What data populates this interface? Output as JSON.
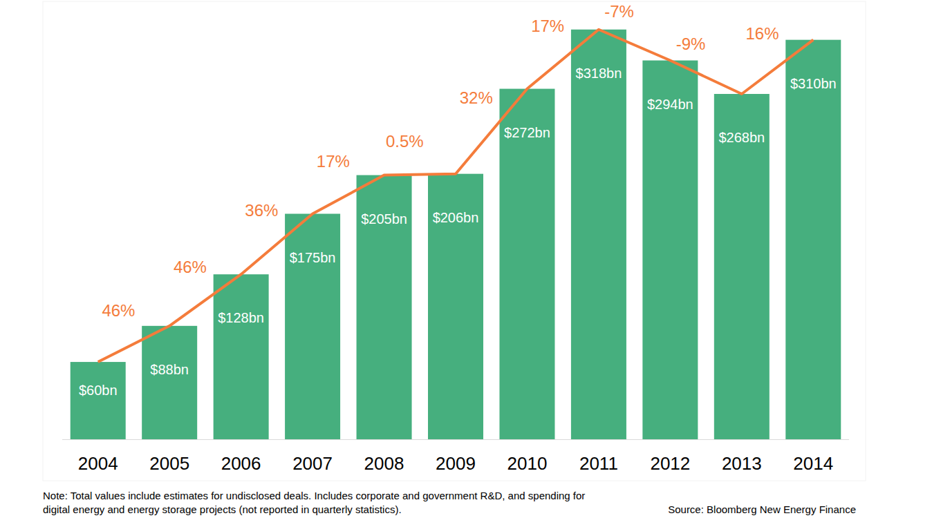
{
  "chart_data": {
    "type": "bar",
    "categories": [
      "2004",
      "2005",
      "2006",
      "2007",
      "2008",
      "2009",
      "2010",
      "2011",
      "2012",
      "2013",
      "2014"
    ],
    "ylim": [
      0,
      320
    ],
    "tick_labels": "x",
    "data_labels": true,
    "series": [
      {
        "type": "bar",
        "color": "#46af7e",
        "values": [
          60,
          88,
          128,
          175,
          205,
          206,
          272,
          318,
          294,
          268,
          310
        ],
        "value_labels": [
          "$60bn",
          "$88bn",
          "$128bn",
          "$175bn",
          "$205bn",
          "$206bn",
          "$272bn",
          "$318bn",
          "$294bn",
          "$268bn",
          "$310bn"
        ]
      },
      {
        "type": "line",
        "color": "#f47c3b",
        "values": [
          60,
          88,
          128,
          175,
          205,
          206,
          272,
          318,
          294,
          268,
          310
        ],
        "growth": [
          null,
          46,
          46,
          36,
          17,
          0.5,
          32,
          17,
          -7,
          -9,
          16
        ],
        "growth_labels": [
          null,
          "46%",
          "46%",
          "36%",
          "17%",
          "0.5%",
          "32%",
          "17%",
          "-7%",
          "-9%",
          "16%"
        ]
      }
    ],
    "note_lines": [
      "Note: Total values include estimates for undisclosed deals. Includes corporate and government R&D, and spending for",
      "digital energy and energy storage projects (not reported in quarterly statistics)."
    ],
    "source": "Source: Bloomberg New Energy Finance"
  }
}
